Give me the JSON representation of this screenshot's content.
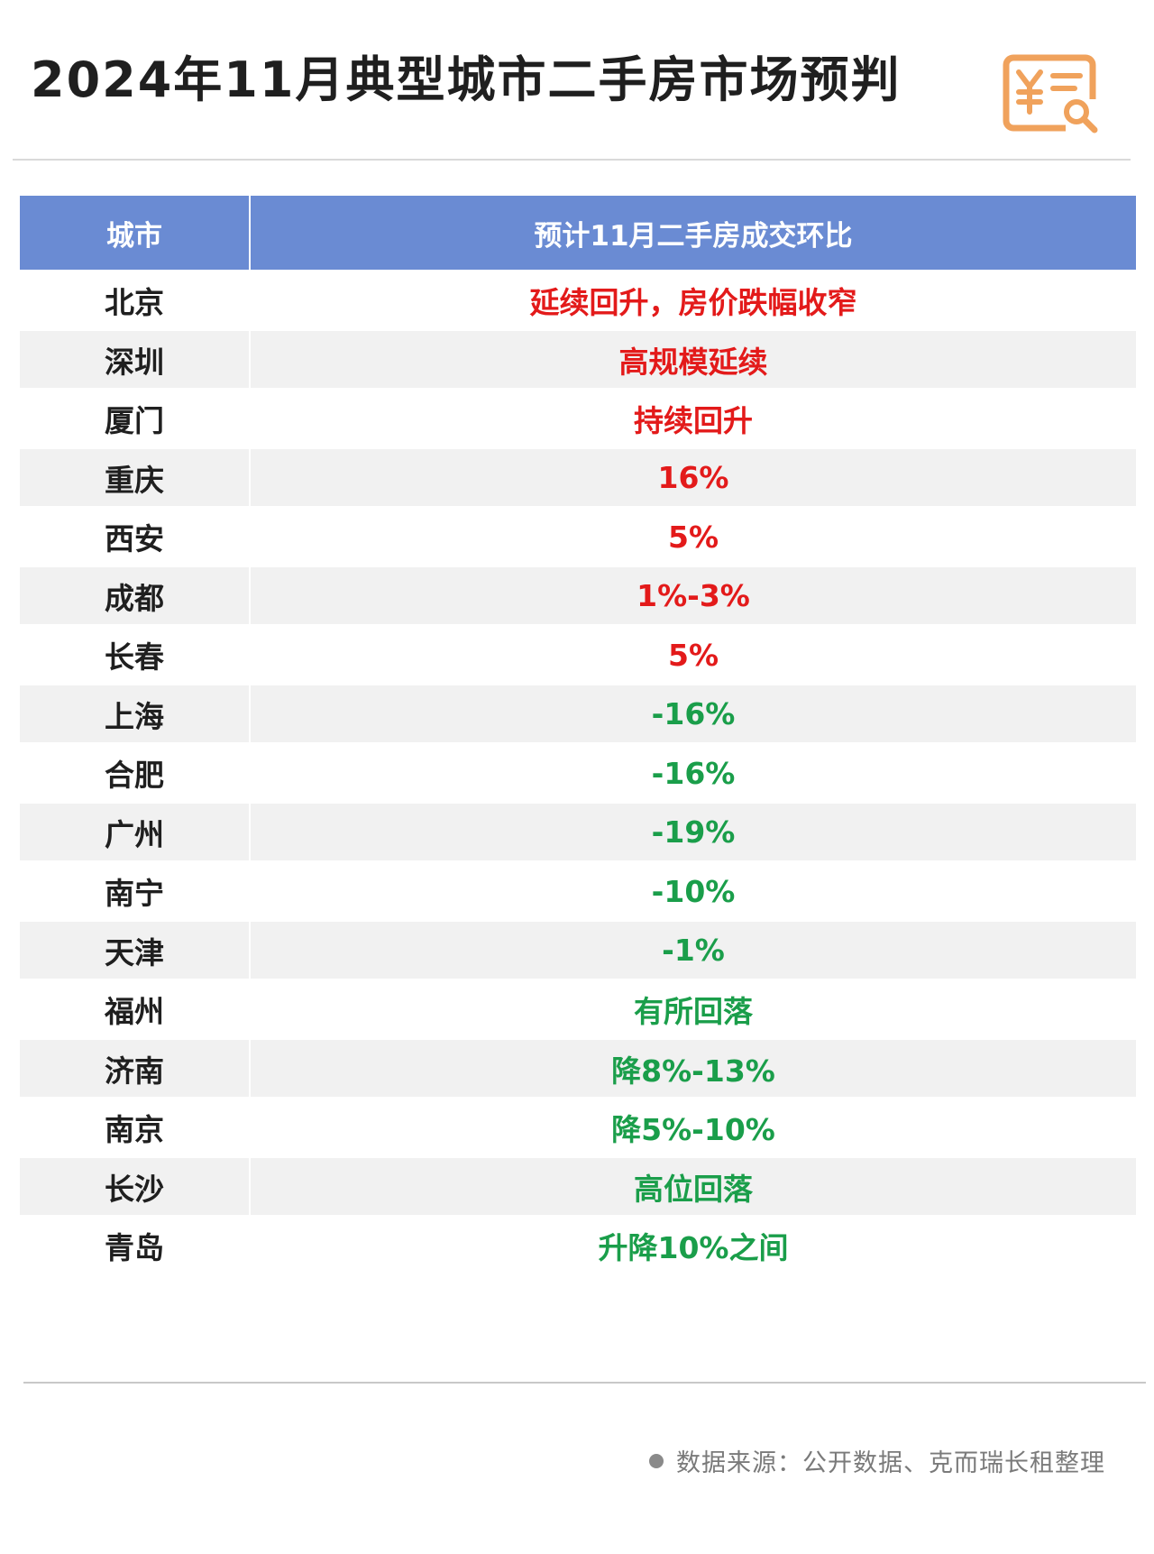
{
  "title": "2024年11月典型城市二手房市场预判",
  "logo": {
    "icon": "yuan-document-search-icon",
    "color": "#f0a25c"
  },
  "table": {
    "header": {
      "city": "城市",
      "forecast": "预计11月二手房成交环比"
    },
    "rows": [
      {
        "city": "北京",
        "forecast": "延续回升，房价跌幅收窄",
        "trend": "up"
      },
      {
        "city": "深圳",
        "forecast": "高规模延续",
        "trend": "up"
      },
      {
        "city": "厦门",
        "forecast": "持续回升",
        "trend": "up"
      },
      {
        "city": "重庆",
        "forecast": "16%",
        "trend": "up"
      },
      {
        "city": "西安",
        "forecast": "5%",
        "trend": "up"
      },
      {
        "city": "成都",
        "forecast": "1%-3%",
        "trend": "up"
      },
      {
        "city": "长春",
        "forecast": "5%",
        "trend": "up"
      },
      {
        "city": "上海",
        "forecast": "-16%",
        "trend": "down"
      },
      {
        "city": "合肥",
        "forecast": "-16%",
        "trend": "down"
      },
      {
        "city": "广州",
        "forecast": "-19%",
        "trend": "down"
      },
      {
        "city": "南宁",
        "forecast": "-10%",
        "trend": "down"
      },
      {
        "city": "天津",
        "forecast": "-1%",
        "trend": "down"
      },
      {
        "city": "福州",
        "forecast": "有所回落",
        "trend": "down"
      },
      {
        "city": "济南",
        "forecast": "降8%-13%",
        "trend": "down"
      },
      {
        "city": "南京",
        "forecast": "降5%-10%",
        "trend": "down"
      },
      {
        "city": "长沙",
        "forecast": "高位回落",
        "trend": "down"
      },
      {
        "city": "青岛",
        "forecast": "升降10%之间",
        "trend": "down"
      }
    ]
  },
  "colors": {
    "header_bg": "#6a8bd3",
    "up": "#e31a1a",
    "down": "#1a9e4a",
    "stripe": "#f1f1f1"
  },
  "footer": {
    "source": "数据来源：公开数据、克而瑞长租整理"
  }
}
